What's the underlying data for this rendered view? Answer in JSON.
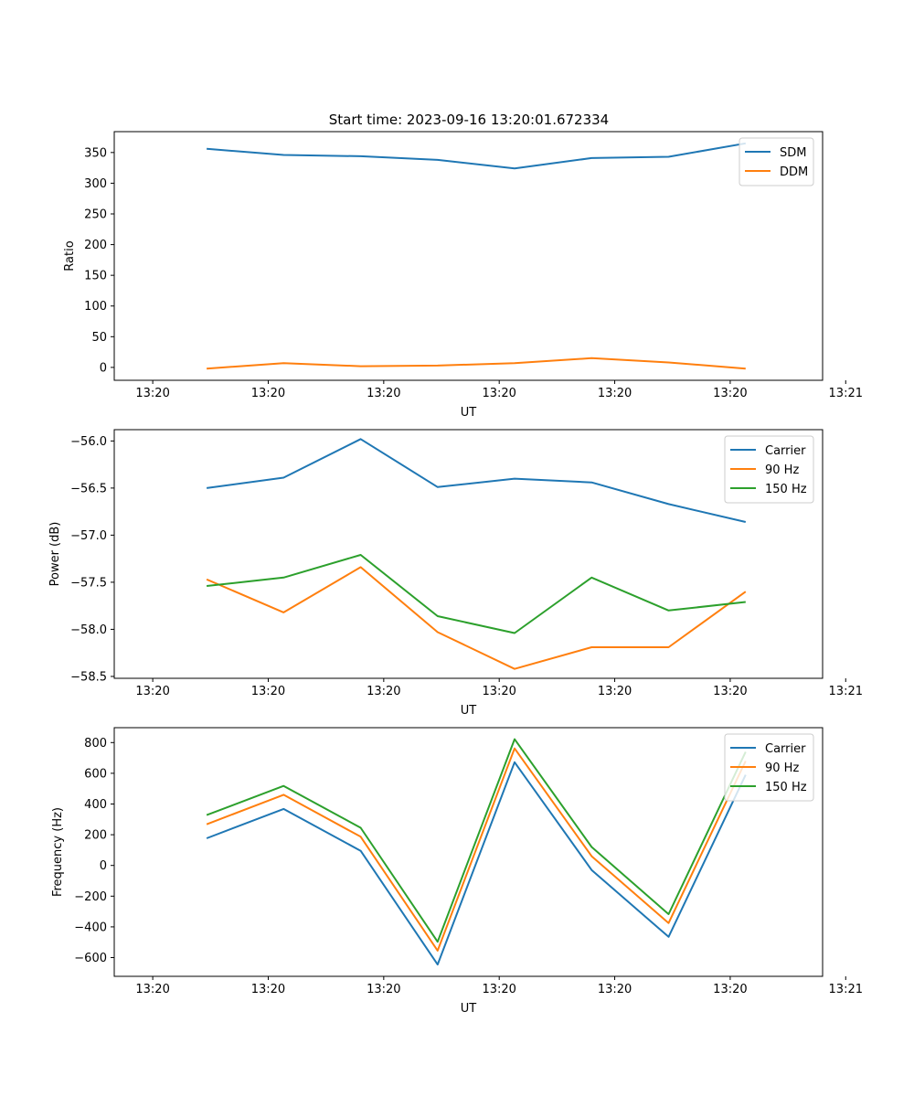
{
  "figure": {
    "title": "Start time: 2023-09-16 13:20:01.672334"
  },
  "chart_data": [
    {
      "type": "line",
      "xlabel": "UT",
      "ylabel": "Ratio",
      "xlim": [
        -0.5,
        8.7
      ],
      "x_ticks": [
        0,
        1.5,
        3,
        4.5,
        6,
        7.5,
        9
      ],
      "x_tick_labels": [
        "13:20",
        "13:20",
        "13:20",
        "13:20",
        "13:20",
        "13:20",
        "13:21"
      ],
      "ylim": [
        -21,
        384
      ],
      "y_ticks": [
        0,
        50,
        100,
        150,
        200,
        250,
        300,
        350
      ],
      "y_tick_labels": [
        "0",
        "50",
        "100",
        "150",
        "200",
        "250",
        "300",
        "350"
      ],
      "x": [
        0.7,
        1.7,
        2.7,
        3.7,
        4.7,
        5.7,
        6.7,
        7.7
      ],
      "legend": "top-right",
      "series": [
        {
          "name": "SDM",
          "color": "#1f77b4",
          "values": [
            356,
            346,
            344,
            338,
            324,
            341,
            343,
            365
          ]
        },
        {
          "name": "DDM",
          "color": "#ff7f0e",
          "values": [
            -2,
            7,
            2,
            3,
            7,
            15,
            8,
            -2
          ]
        }
      ]
    },
    {
      "type": "line",
      "xlabel": "UT",
      "ylabel": "Power (dB)",
      "xlim": [
        -0.5,
        8.7
      ],
      "x_ticks": [
        0,
        1.5,
        3,
        4.5,
        6,
        7.5,
        9
      ],
      "x_tick_labels": [
        "13:20",
        "13:20",
        "13:20",
        "13:20",
        "13:20",
        "13:20",
        "13:21"
      ],
      "ylim": [
        -58.52,
        -55.88
      ],
      "y_ticks": [
        -56.0,
        -56.5,
        -57.0,
        -57.5,
        -58.0,
        -58.5
      ],
      "y_tick_labels": [
        "−56.0",
        "−56.5",
        "−57.0",
        "−57.5",
        "−58.0",
        "−58.5"
      ],
      "x": [
        0.7,
        1.7,
        2.7,
        3.7,
        4.7,
        5.7,
        6.7,
        7.7
      ],
      "legend": "top-right",
      "series": [
        {
          "name": "Carrier",
          "color": "#1f77b4",
          "values": [
            -56.5,
            -56.39,
            -55.98,
            -56.49,
            -56.4,
            -56.44,
            -56.67,
            -56.86
          ]
        },
        {
          "name": "90 Hz",
          "color": "#ff7f0e",
          "values": [
            -57.47,
            -57.82,
            -57.34,
            -58.03,
            -58.42,
            -58.19,
            -58.19,
            -57.6
          ]
        },
        {
          "name": "150 Hz",
          "color": "#2ca02c",
          "values": [
            -57.54,
            -57.45,
            -57.21,
            -57.86,
            -58.04,
            -57.45,
            -57.8,
            -57.71
          ]
        }
      ]
    },
    {
      "type": "line",
      "xlabel": "UT",
      "ylabel": "Frequency (Hz)",
      "xlim": [
        -0.5,
        8.7
      ],
      "x_ticks": [
        0,
        1.5,
        3,
        4.5,
        6,
        7.5,
        9
      ],
      "x_tick_labels": [
        "13:20",
        "13:20",
        "13:20",
        "13:20",
        "13:20",
        "13:20",
        "13:21"
      ],
      "ylim": [
        -722,
        897
      ],
      "y_ticks": [
        800,
        600,
        400,
        200,
        0,
        -200,
        -400,
        -600
      ],
      "y_tick_labels": [
        "800",
        "600",
        "400",
        "200",
        "0",
        "−200",
        "−400",
        "−600"
      ],
      "x": [
        0.7,
        1.7,
        2.7,
        3.7,
        4.7,
        5.7,
        6.7,
        7.7
      ],
      "legend": "top-right",
      "series": [
        {
          "name": "Carrier",
          "color": "#1f77b4",
          "values": [
            177,
            368,
            95,
            -645,
            672,
            -30,
            -465,
            590
          ]
        },
        {
          "name": "90 Hz",
          "color": "#ff7f0e",
          "values": [
            268,
            460,
            187,
            -555,
            762,
            60,
            -375,
            680
          ]
        },
        {
          "name": "150 Hz",
          "color": "#2ca02c",
          "values": [
            328,
            518,
            245,
            -497,
            822,
            120,
            -317,
            740
          ]
        }
      ]
    }
  ]
}
